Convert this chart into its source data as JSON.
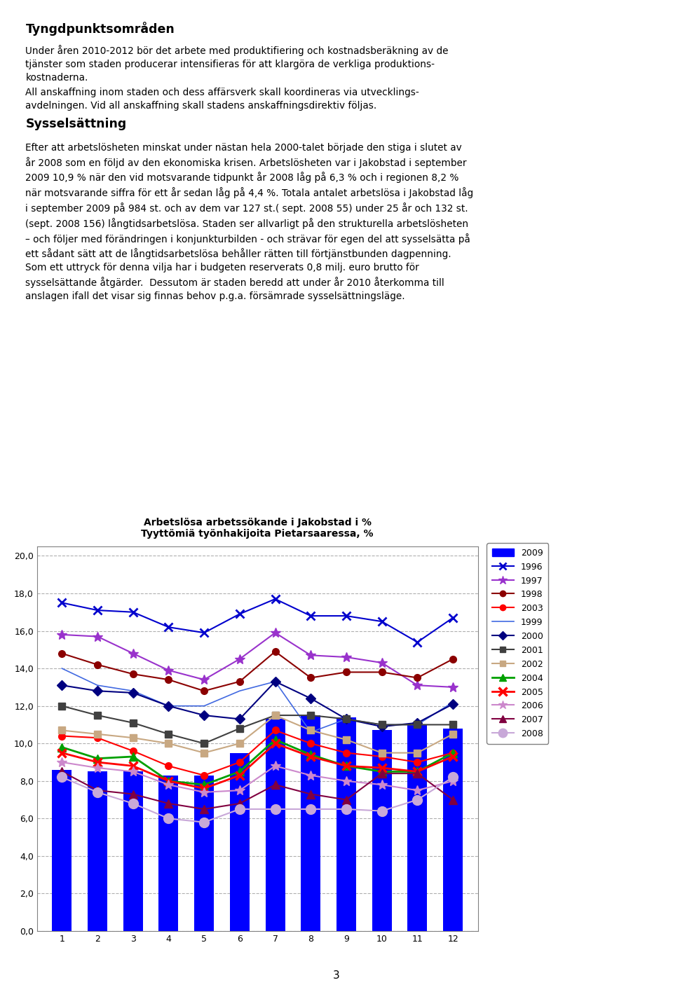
{
  "title_line1": "Arbetslösa arbetssökande i Jakobstad i %",
  "title_line2": "Tyyttömiä työnhakijoita Pietarsaaressa, %",
  "months": [
    1,
    2,
    3,
    4,
    5,
    6,
    7,
    8,
    9,
    10,
    11,
    12
  ],
  "bar_2009": [
    8.6,
    8.5,
    8.5,
    8.3,
    8.3,
    9.5,
    11.3,
    11.5,
    11.4,
    10.7,
    11.0,
    10.8
  ],
  "series_1996": [
    17.5,
    17.1,
    17.0,
    16.2,
    15.9,
    16.9,
    17.7,
    16.8,
    16.8,
    16.5,
    15.4,
    16.7
  ],
  "series_1997": [
    15.8,
    15.7,
    14.8,
    13.9,
    13.4,
    14.5,
    15.9,
    14.7,
    14.6,
    14.3,
    13.1,
    13.0
  ],
  "series_1998": [
    14.8,
    14.2,
    13.7,
    13.4,
    12.8,
    13.3,
    14.9,
    13.5,
    13.8,
    13.8,
    13.5,
    14.5
  ],
  "series_2003": [
    10.4,
    10.3,
    9.6,
    8.8,
    8.3,
    9.0,
    10.7,
    10.0,
    9.5,
    9.3,
    9.0,
    9.5
  ],
  "series_1999": [
    14.0,
    13.1,
    12.8,
    12.0,
    12.0,
    12.8,
    13.3,
    10.6,
    11.3,
    11.0,
    11.0,
    12.2
  ],
  "series_2000": [
    13.1,
    12.8,
    12.7,
    12.0,
    11.5,
    11.3,
    13.3,
    12.4,
    11.3,
    10.9,
    11.1,
    12.1
  ],
  "series_2001": [
    12.0,
    11.5,
    11.1,
    10.5,
    10.0,
    10.8,
    11.5,
    11.5,
    11.3,
    11.0,
    11.0,
    11.0
  ],
  "series_2002": [
    10.7,
    10.5,
    10.3,
    10.0,
    9.5,
    10.0,
    11.5,
    10.7,
    10.2,
    9.5,
    9.5,
    10.5
  ],
  "series_2004": [
    9.8,
    9.2,
    9.3,
    8.0,
    7.8,
    8.5,
    10.2,
    9.4,
    8.8,
    8.5,
    8.5,
    9.5
  ],
  "series_2005": [
    9.5,
    9.0,
    8.8,
    8.0,
    7.6,
    8.3,
    10.0,
    9.3,
    8.8,
    8.7,
    8.5,
    9.3
  ],
  "series_2006": [
    9.0,
    8.7,
    8.5,
    7.8,
    7.4,
    7.5,
    8.8,
    8.3,
    8.0,
    7.8,
    7.5,
    8.0
  ],
  "series_2007": [
    8.5,
    7.5,
    7.3,
    6.8,
    6.5,
    6.8,
    7.8,
    7.3,
    7.0,
    8.4,
    8.4,
    7.0
  ],
  "series_2008": [
    8.2,
    7.4,
    6.8,
    6.0,
    5.8,
    6.5,
    6.5,
    6.5,
    6.5,
    6.4,
    7.0,
    8.2
  ],
  "bar_color": "#0000FF",
  "color_1996": "#0000CD",
  "color_1997": "#9932CC",
  "color_1998": "#8B0000",
  "color_2003": "#FF0000",
  "color_1999": "#4169E1",
  "color_2000": "#000080",
  "color_2001": "#404040",
  "color_2002": "#C8A882",
  "color_2004": "#00A000",
  "color_2005": "#FF0000",
  "color_2006": "#CC88CC",
  "color_2007": "#800040",
  "color_2008": "#C8A8D8",
  "background_color": "#FFFFFF"
}
